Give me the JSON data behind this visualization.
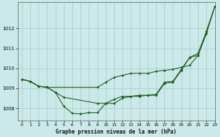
{
  "xlabel": "Graphe pression niveau de la mer (hPa)",
  "xlim": [
    -0.5,
    23
  ],
  "ylim": [
    1007.4,
    1013.3
  ],
  "yticks": [
    1008,
    1009,
    1010,
    1011,
    1012
  ],
  "xticks": [
    0,
    1,
    2,
    3,
    4,
    5,
    6,
    7,
    8,
    9,
    10,
    11,
    12,
    13,
    14,
    15,
    16,
    17,
    18,
    19,
    20,
    21,
    22,
    23
  ],
  "background_color": "#cce9e9",
  "grid_color": "#aacccc",
  "line_color": "#1a5c1a",
  "line1_x": [
    0,
    1,
    2,
    3,
    9,
    10,
    11,
    12,
    13,
    14,
    15,
    16,
    17,
    18,
    19,
    20,
    21,
    22,
    23
  ],
  "line1_y": [
    1009.45,
    1009.35,
    1009.1,
    1009.05,
    1009.05,
    1009.3,
    1009.55,
    1009.65,
    1009.75,
    1009.75,
    1009.75,
    1009.85,
    1009.9,
    1009.95,
    1010.05,
    1010.15,
    1010.65,
    1011.75,
    1013.1
  ],
  "line2_x": [
    0,
    1,
    2,
    3,
    4,
    5,
    9,
    10,
    11,
    12,
    13,
    14,
    15,
    16,
    17,
    18,
    19,
    20,
    21,
    22,
    23
  ],
  "line2_y": [
    1009.45,
    1009.35,
    1009.1,
    1009.05,
    1008.8,
    1008.55,
    1008.25,
    1008.25,
    1008.45,
    1008.6,
    1008.6,
    1008.65,
    1008.65,
    1008.7,
    1009.3,
    1009.35,
    1009.95,
    1010.55,
    1010.65,
    1011.85,
    1013.1
  ],
  "line3_x": [
    0,
    1,
    2,
    3,
    4,
    5,
    6,
    7,
    8,
    9,
    10,
    11,
    12,
    13,
    14,
    15,
    16,
    17,
    18,
    19,
    20,
    21,
    22,
    23
  ],
  "line3_y": [
    1009.45,
    1009.35,
    1009.1,
    1009.05,
    1008.8,
    1008.1,
    1007.75,
    1007.72,
    1007.78,
    1007.78,
    1008.25,
    1008.25,
    1008.5,
    1008.6,
    1008.6,
    1008.65,
    1008.65,
    1009.25,
    1009.3,
    1009.9,
    1010.55,
    1010.75,
    1011.85,
    1013.1
  ]
}
